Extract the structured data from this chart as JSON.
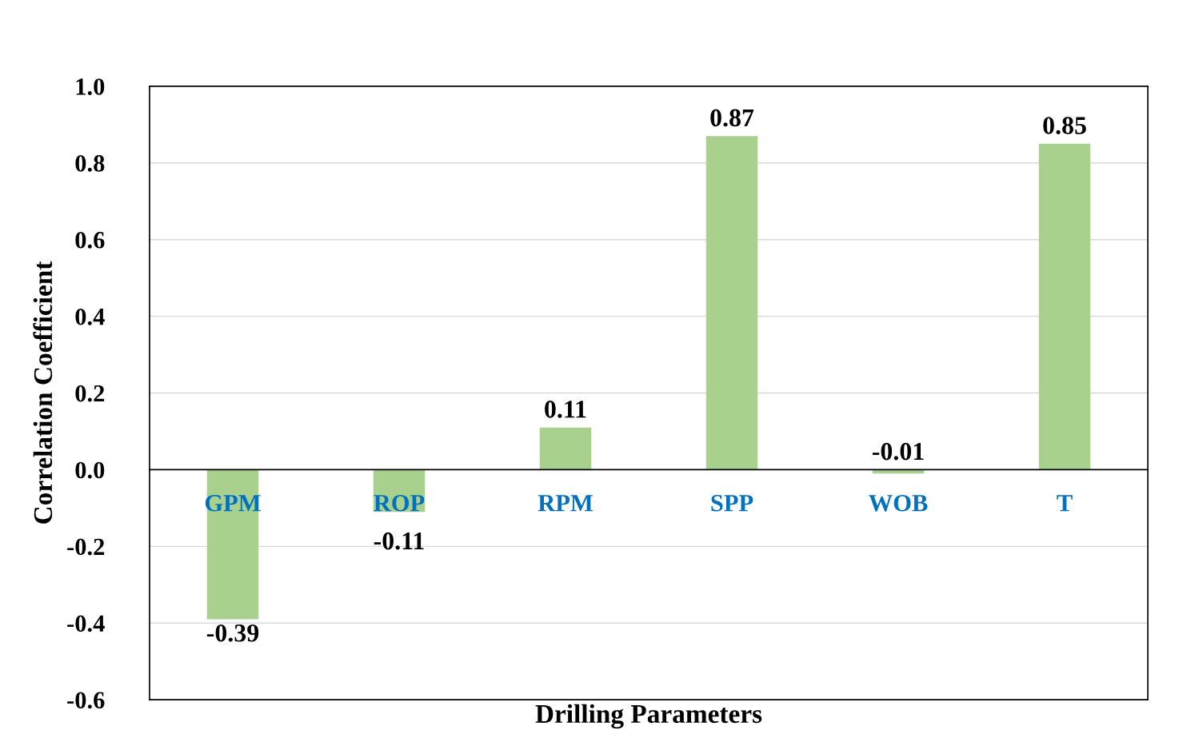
{
  "chart_data": {
    "type": "bar",
    "xlabel": "Drilling Parameters",
    "ylabel": "Correlation Coefficient",
    "categories": [
      "GPM",
      "ROP",
      "RPM",
      "SPP",
      "WOB",
      "T"
    ],
    "values": [
      -0.39,
      -0.11,
      0.11,
      0.87,
      -0.01,
      0.85
    ],
    "color": "#a9d18e",
    "ylim": [
      -0.6,
      1.0
    ],
    "yticks": [
      {
        "value": -0.6,
        "label": "-0.6"
      },
      {
        "value": -0.4,
        "label": "-0.4"
      },
      {
        "value": -0.2,
        "label": "-0.2"
      },
      {
        "value": 0,
        "label": "0.0"
      },
      {
        "value": 0.2,
        "label": "0.2"
      },
      {
        "value": 0.4,
        "label": "0.4"
      },
      {
        "value": 0.6,
        "label": "0.6"
      },
      {
        "value": 0.8,
        "label": "0.8"
      },
      {
        "value": 1.0,
        "label": "1.0"
      }
    ],
    "grid": "y",
    "legend": false,
    "data_labels": true
  }
}
